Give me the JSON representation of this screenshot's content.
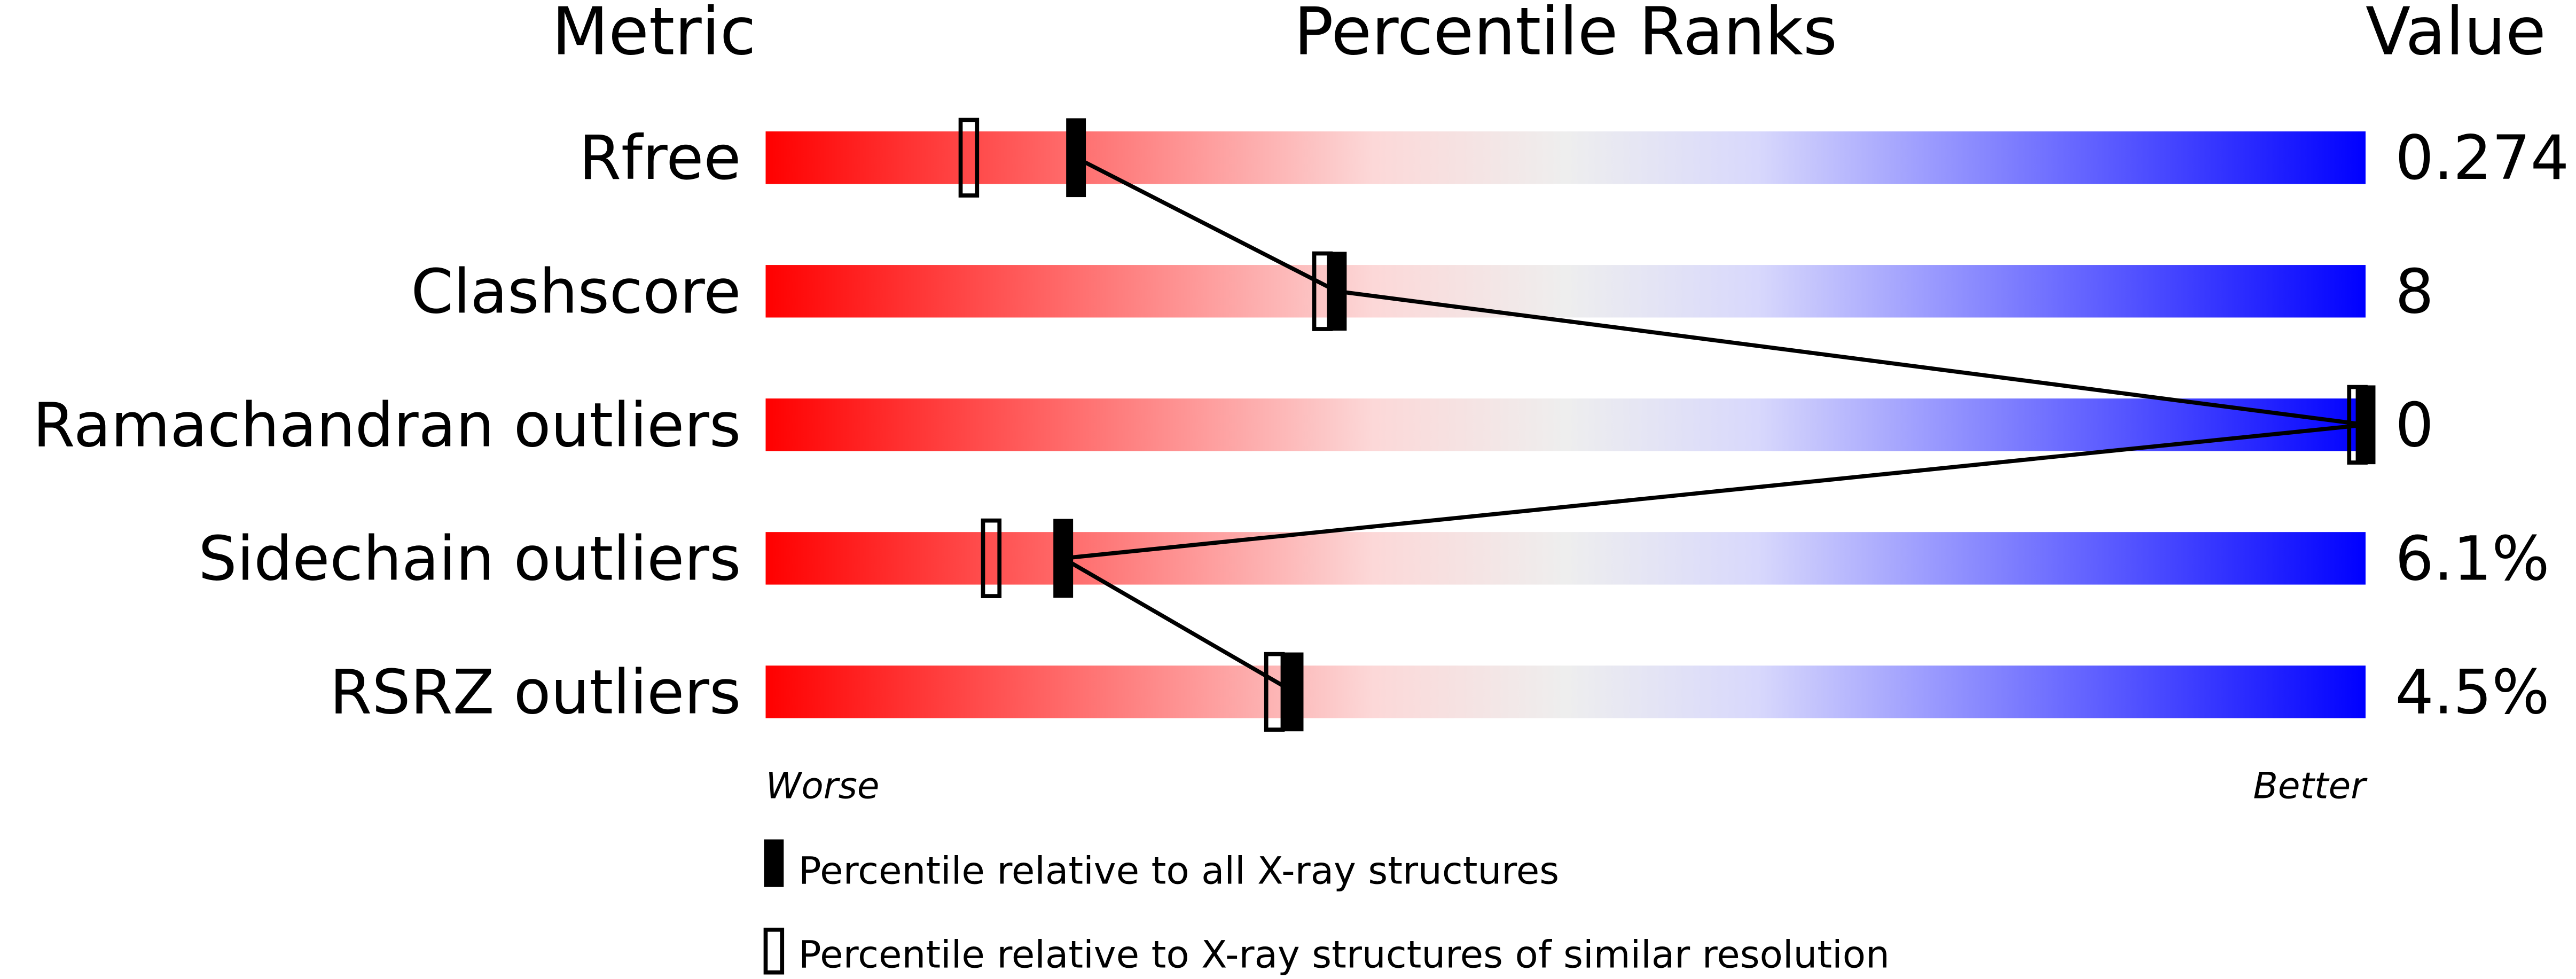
{
  "chart_data": {
    "type": "percentile-bar",
    "headers": {
      "metric": "Metric",
      "ranks": "Percentile Ranks",
      "value": "Value"
    },
    "xlim": [
      0,
      100
    ],
    "axis_labels": {
      "left": "Worse",
      "right": "Better"
    },
    "gradient_colors": [
      "#ff0000",
      "#eeeeee",
      "#0000ff"
    ],
    "metrics": [
      {
        "name": "Rfree",
        "value": "0.274",
        "percentile_all": 19.4,
        "percentile_similar": 12.7
      },
      {
        "name": "Clashscore",
        "value": "8",
        "percentile_all": 35.7,
        "percentile_similar": 34.8
      },
      {
        "name": "Ramachandran outliers",
        "value": "0",
        "percentile_all": 100,
        "percentile_similar": 100
      },
      {
        "name": "Sidechain outliers",
        "value": "6.1%",
        "percentile_all": 18.6,
        "percentile_similar": 14.1
      },
      {
        "name": "RSRZ outliers",
        "value": "4.5%",
        "percentile_all": 33.0,
        "percentile_similar": 31.8
      }
    ],
    "legend": [
      {
        "marker": "filled",
        "label": "Percentile relative to all X-ray structures"
      },
      {
        "marker": "open",
        "label": "Percentile relative to X-ray structures of similar resolution"
      }
    ]
  }
}
